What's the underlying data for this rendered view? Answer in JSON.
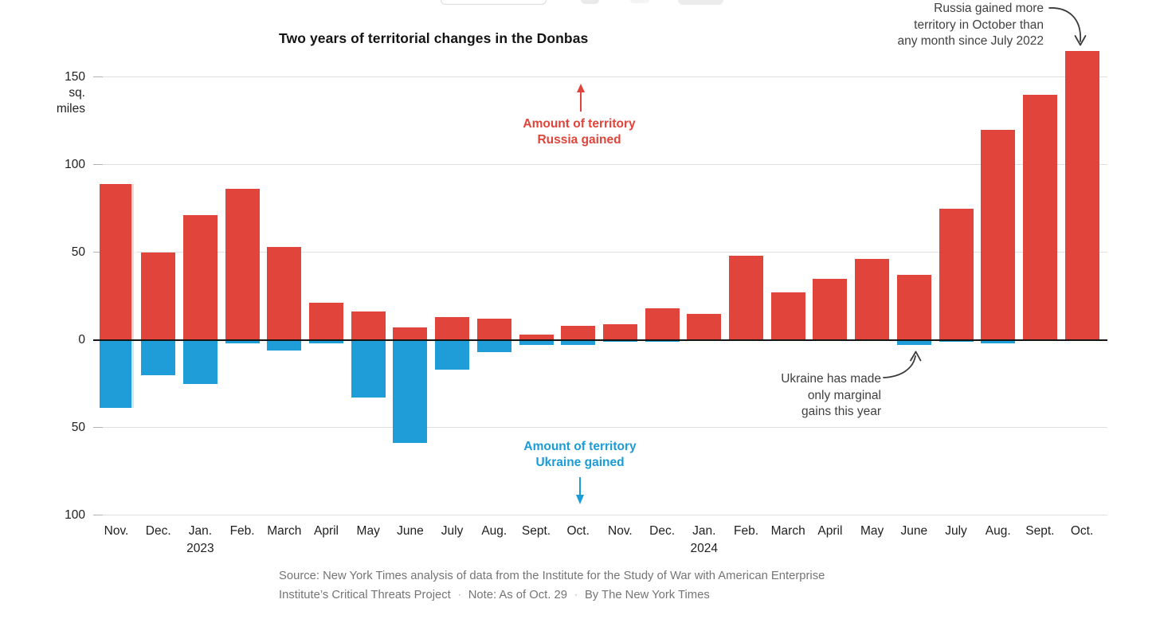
{
  "chart_data": {
    "type": "bar",
    "title": "Two years of territorial changes in the Donbas",
    "units": "sq. miles",
    "y_axis": {
      "unit_lines": [
        "sq.",
        "miles"
      ],
      "tick_values": [
        150,
        100,
        50,
        0,
        -50,
        -100
      ],
      "tick_labels": [
        "150",
        "100",
        "50",
        "0",
        "50",
        "100"
      ]
    },
    "x_axis": {
      "months": [
        "Nov.",
        "Dec.",
        "Jan.",
        "Feb.",
        "March",
        "April",
        "May",
        "June",
        "July",
        "Aug.",
        "Sept.",
        "Oct.",
        "Nov.",
        "Dec.",
        "Jan.",
        "Feb.",
        "March",
        "April",
        "May",
        "June",
        "July",
        "Aug.",
        "Sept.",
        "Oct."
      ],
      "year_marks": [
        {
          "index": 2,
          "label": "2023"
        },
        {
          "index": 14,
          "label": "2024"
        }
      ]
    },
    "series": [
      {
        "name": "Amount of territory Russia gained",
        "color": "#e0443a",
        "values": [
          89,
          50,
          71,
          86,
          53,
          21,
          16,
          7,
          13,
          12,
          3,
          8,
          9,
          18,
          15,
          48,
          27,
          35,
          46,
          37,
          75,
          120,
          140,
          165
        ]
      },
      {
        "name": "Amount of territory Ukraine gained",
        "color": "#1f9dd9",
        "values": [
          -39,
          -20,
          -25,
          -2,
          -6,
          -2,
          -33,
          -59,
          -17,
          -7,
          -3,
          -3,
          -1,
          -1,
          -0.5,
          0,
          0,
          0,
          0,
          -3,
          -1,
          -2,
          0,
          0
        ]
      }
    ],
    "ylim": [
      -105,
      170
    ],
    "grid": true,
    "legend_position": "in-plot annotations"
  },
  "annotations": {
    "russia_series_label": {
      "lines": [
        "Amount of territory",
        "Russia gained"
      ],
      "color": "#e0443a"
    },
    "ukraine_series_label": {
      "lines": [
        "Amount of territory",
        "Ukraine gained"
      ],
      "color": "#1a9cd8"
    },
    "october_callout": {
      "lines": [
        "Russia gained more",
        "territory in October than",
        "any month since July 2022"
      ],
      "color": "#414141"
    },
    "ukraine_callout": {
      "lines": [
        "Ukraine has made",
        "only marginal",
        "gains this year"
      ],
      "color": "#414141"
    }
  },
  "footer": {
    "line1": "Source: New York Times analysis of data from the Institute for the Study of War with American Enterprise",
    "line2_parts": [
      "Institute’s Critical Threats Project",
      "Note: As of Oct. 29",
      "By The New York Times"
    ],
    "separator": "·"
  }
}
